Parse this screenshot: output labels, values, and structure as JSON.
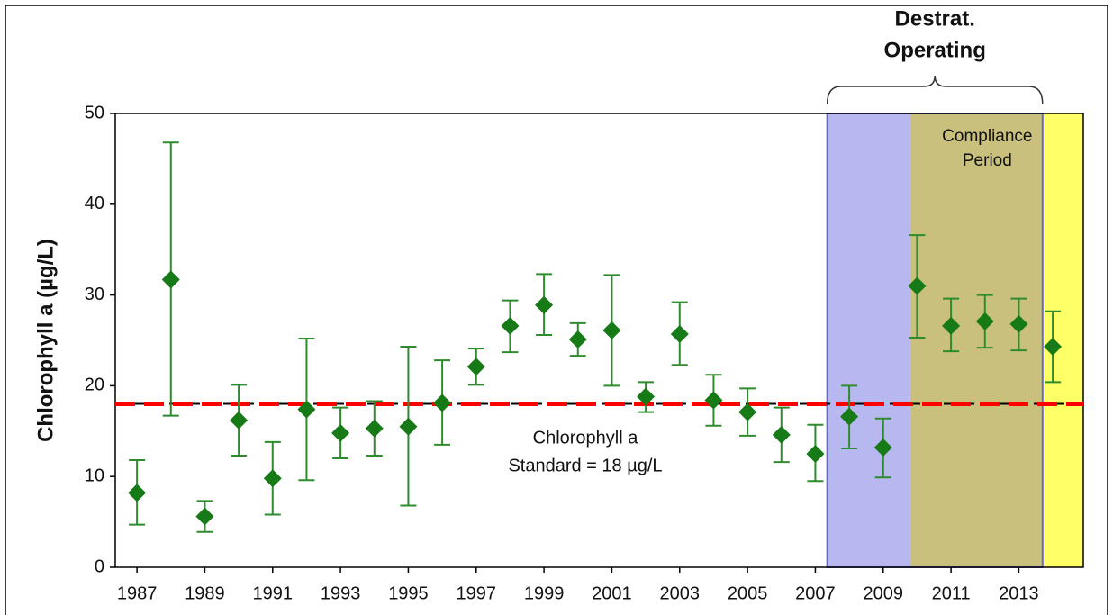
{
  "chart_data": {
    "type": "errorbar",
    "ylabel": "Chlorophyll a (µg/L)",
    "x": [
      1987,
      1988,
      1989,
      1990,
      1991,
      1992,
      1993,
      1994,
      1995,
      1996,
      1997,
      1998,
      1999,
      2000,
      2001,
      2002,
      2003,
      2004,
      2005,
      2006,
      2007,
      2008,
      2009,
      2010,
      2011,
      2012,
      2013,
      2014
    ],
    "values": [
      8.2,
      31.7,
      5.6,
      16.2,
      9.8,
      17.4,
      14.8,
      15.3,
      15.5,
      18.1,
      22.1,
      26.6,
      28.9,
      25.1,
      26.1,
      18.8,
      25.7,
      18.4,
      17.1,
      14.6,
      12.5,
      16.6,
      13.2,
      31.0,
      26.6,
      27.1,
      26.8,
      24.3
    ],
    "lower": [
      4.7,
      16.7,
      3.9,
      12.3,
      5.8,
      9.6,
      12.0,
      12.3,
      6.8,
      13.5,
      20.1,
      23.7,
      25.6,
      23.3,
      20.0,
      17.1,
      22.3,
      15.6,
      14.5,
      11.6,
      9.5,
      13.1,
      9.9,
      25.3,
      23.8,
      24.2,
      23.9,
      20.4
    ],
    "upper": [
      11.8,
      46.8,
      7.3,
      20.1,
      13.8,
      25.2,
      17.6,
      18.3,
      24.3,
      22.8,
      24.1,
      29.4,
      32.3,
      26.9,
      32.2,
      20.4,
      29.2,
      21.2,
      19.7,
      17.6,
      15.7,
      20.0,
      16.4,
      36.6,
      29.6,
      30.0,
      29.6,
      28.2
    ],
    "marker_color": "#167a16",
    "error_color": "#2e8b2e",
    "reference_line": {
      "value": 18,
      "color": "#ff0000",
      "under_color": "#000000",
      "label_lines": [
        "Chlorophyll a",
        "Standard = 18 µg/L"
      ]
    },
    "regions": [
      {
        "start": 2007.35,
        "end": 2009.8,
        "color": "#b8b8f0"
      },
      {
        "start": 2009.8,
        "end": 2013.7,
        "color": "#c8c07c",
        "label_lines": [
          "Compliance",
          "Period"
        ]
      },
      {
        "start": 2013.7,
        "end": 2014.9,
        "color": "#ffff66"
      }
    ],
    "bracket": {
      "start": 2007.35,
      "end": 2013.7,
      "color": "#6a6acc",
      "label_lines": [
        "Destrat.",
        "Operating"
      ]
    },
    "xlim": [
      1986.36,
      2014.9
    ],
    "xticks": [
      1987,
      1989,
      1991,
      1993,
      1995,
      1997,
      1999,
      2001,
      2003,
      2005,
      2007,
      2009,
      2011,
      2013
    ],
    "ylim": [
      0,
      50
    ],
    "yticks": [
      0,
      10,
      20,
      30,
      40,
      50
    ]
  }
}
